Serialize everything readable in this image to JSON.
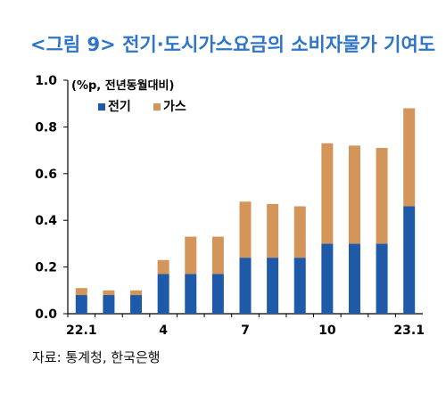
{
  "title": "<그림 9> 전기·도시가스요금의 소비자물가 기여도",
  "source": "자료: 통계청, 한국은행",
  "colors": {
    "electricity": "#1f5aa8",
    "gas": "#d4955b",
    "axis": "#000000",
    "text": "#000000"
  },
  "chart_data": {
    "type": "bar",
    "stacked": true,
    "unit_label": "(%p, 전년동월대비)",
    "x": [
      "22.1",
      "22.2",
      "22.3",
      "22.4",
      "22.5",
      "22.6",
      "22.7",
      "22.8",
      "22.9",
      "22.10",
      "22.11",
      "22.12",
      "23.1"
    ],
    "x_tick_labels": [
      "22.1",
      "",
      "",
      "4",
      "",
      "",
      "7",
      "",
      "",
      "10",
      "",
      "",
      "23.1"
    ],
    "y_tick_labels": [
      "0.0",
      "0.2",
      "0.4",
      "0.6",
      "0.8",
      "1.0"
    ],
    "ylim": [
      0,
      1.0
    ],
    "grid": false,
    "legend_position": "top-left",
    "series": [
      {
        "name": "전기",
        "color": "#1f5aa8",
        "values": [
          0.08,
          0.08,
          0.08,
          0.17,
          0.17,
          0.17,
          0.24,
          0.24,
          0.24,
          0.3,
          0.3,
          0.3,
          0.46
        ]
      },
      {
        "name": "가스",
        "color": "#d4955b",
        "values": [
          0.03,
          0.02,
          0.02,
          0.06,
          0.16,
          0.16,
          0.24,
          0.23,
          0.22,
          0.43,
          0.42,
          0.41,
          0.42
        ]
      }
    ]
  }
}
